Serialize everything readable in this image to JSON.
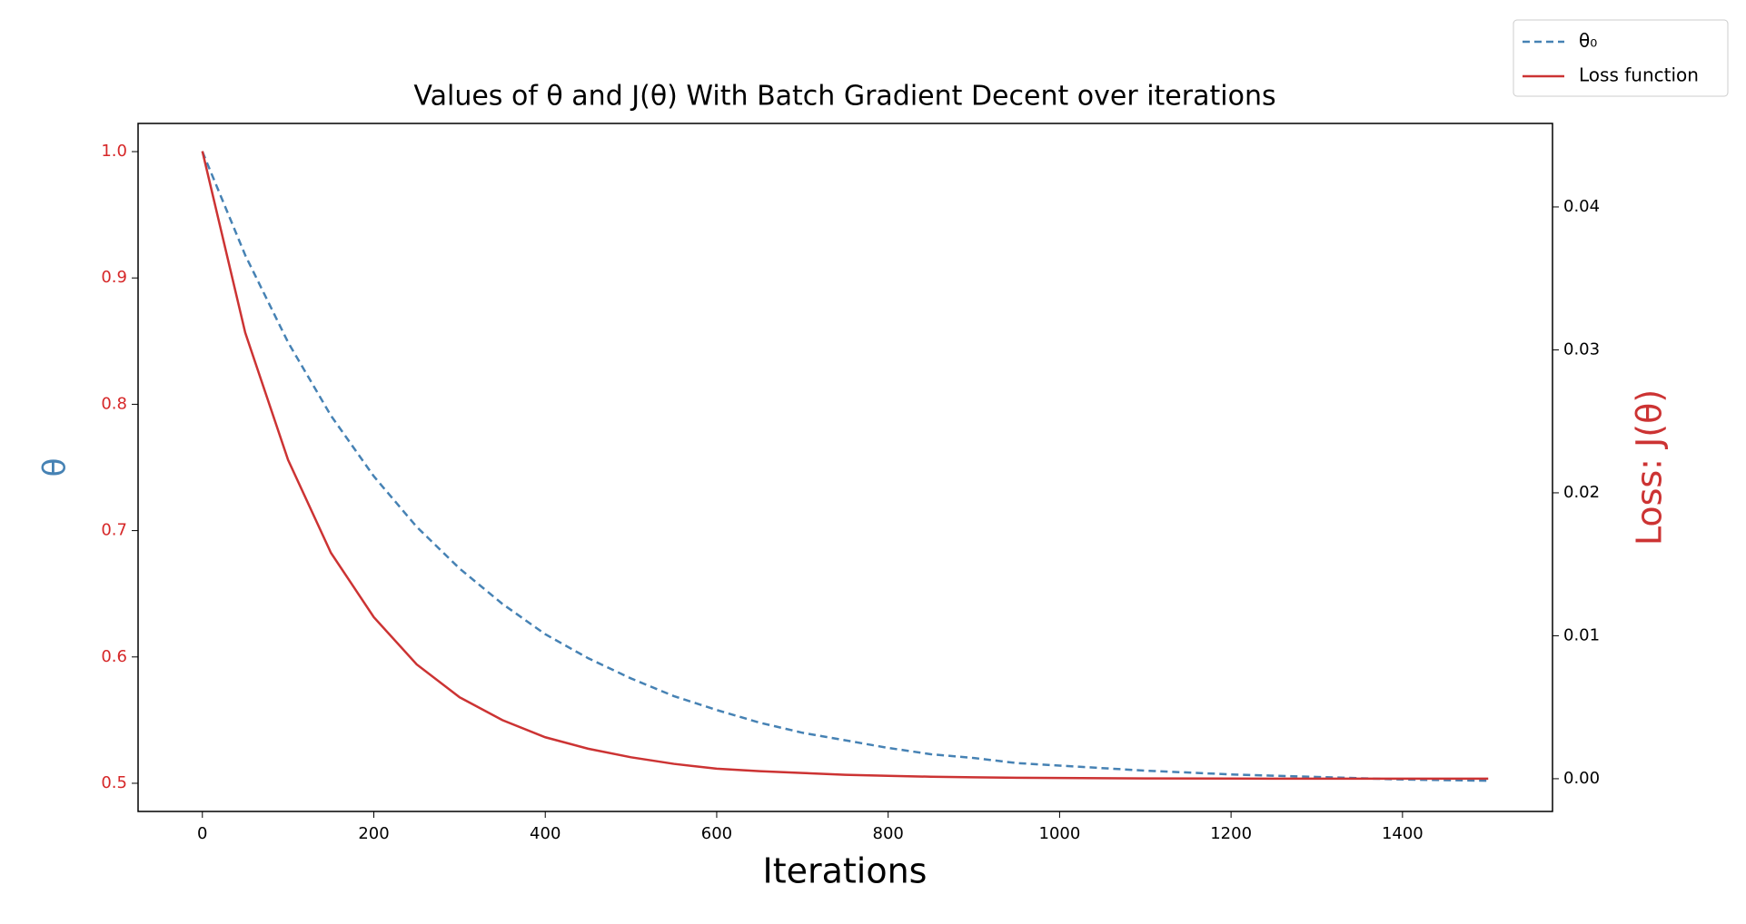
{
  "chart_data": {
    "type": "line",
    "title": "Values of θ and J(θ) With Batch Gradient Decent over iterations",
    "x_label": "Iterations",
    "y_label": "θ",
    "y2_label": "Loss: J(θ)",
    "x": [
      0,
      50,
      100,
      150,
      200,
      250,
      300,
      350,
      400,
      450,
      500,
      550,
      600,
      650,
      700,
      750,
      800,
      850,
      900,
      950,
      1000,
      1100,
      1200,
      1300,
      1400,
      1500
    ],
    "series": [
      {
        "name": "θ₀",
        "color": "#4682b4",
        "linestyle": "dashed",
        "values": [
          1.0,
          0.918,
          0.849,
          0.791,
          0.743,
          0.703,
          0.67,
          0.642,
          0.618,
          0.599,
          0.583,
          0.569,
          0.558,
          0.548,
          0.54,
          0.534,
          0.528,
          0.523,
          0.52,
          0.516,
          0.514,
          0.51,
          0.507,
          0.505,
          0.503,
          0.502
        ]
      },
      {
        "name": "Loss function",
        "color": "#cc3333",
        "linestyle": "solid",
        "axis": "y2",
        "values": [
          0.0439,
          0.0312,
          0.0223,
          0.0158,
          0.0113,
          0.008,
          0.0057,
          0.0041,
          0.0029,
          0.0021,
          0.0015,
          0.00104,
          0.0007,
          0.00053,
          0.0004,
          0.00027,
          0.0002,
          0.00014,
          0.0001,
          7e-05,
          5e-05,
          2e-05,
          1e-05,
          0,
          0,
          0
        ]
      }
    ],
    "xlim": [
      -75,
      1575
    ],
    "xticks": [
      0,
      200,
      400,
      600,
      800,
      1000,
      1200,
      1400
    ],
    "ylim": [
      0.4777,
      1.0223
    ],
    "yticks": [
      0.5,
      0.6,
      0.7,
      0.8,
      0.9,
      {
        "value": 1,
        "label": "1.0"
      }
    ],
    "y2lim": [
      -0.00229,
      0.04584
    ],
    "y2ticks": [
      {
        "value": 0,
        "label": "0.00"
      },
      0.01,
      0.02,
      0.03,
      0.04
    ],
    "grid": false,
    "legend": "upper right"
  }
}
